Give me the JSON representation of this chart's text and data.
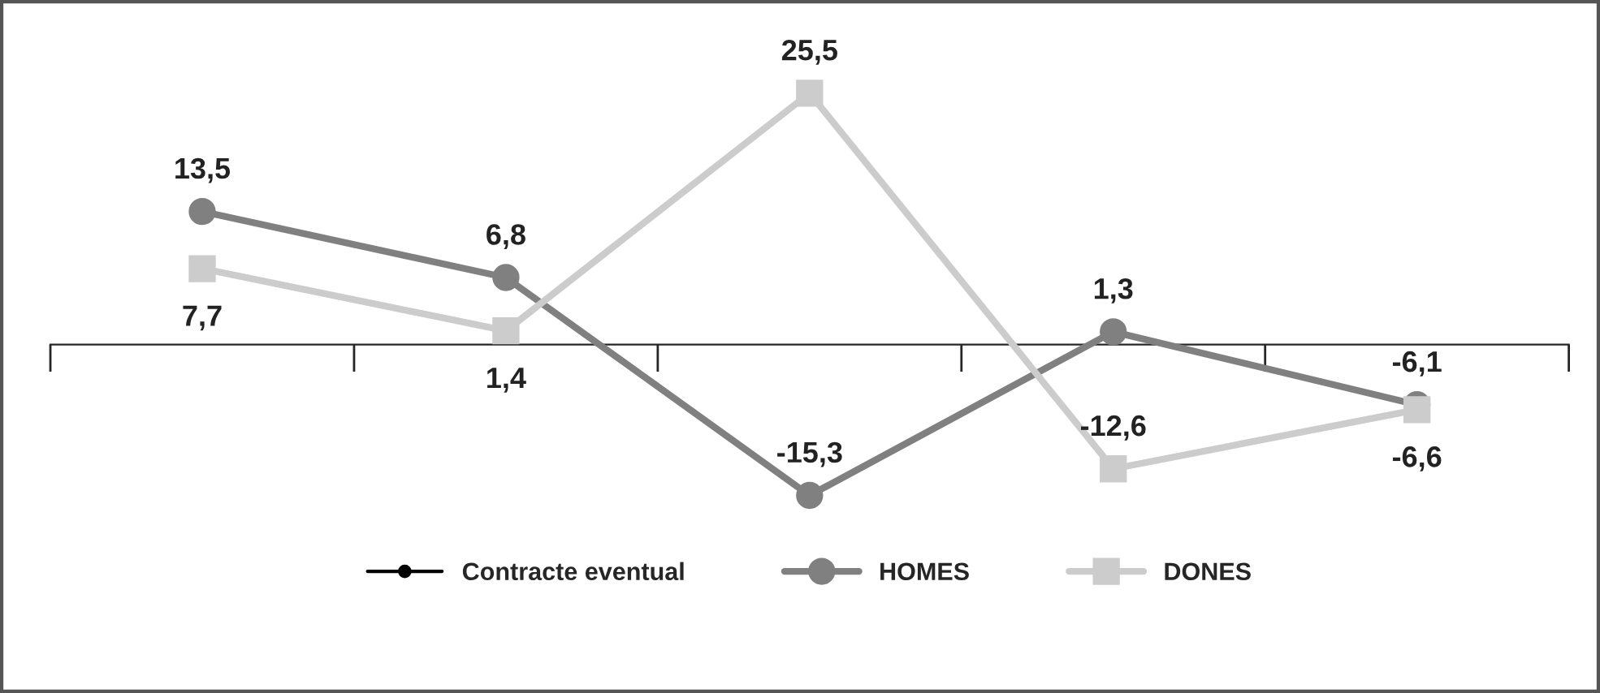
{
  "chart_data": {
    "type": "line",
    "categories": [
      null,
      null,
      null,
      null,
      null
    ],
    "series": [
      {
        "name": "Contracte eventual",
        "color": "#000000",
        "marker": "circle",
        "values": [
          null,
          null,
          null,
          null,
          null
        ]
      },
      {
        "name": "HOMES",
        "color": "#808080",
        "marker": "circle",
        "values": [
          13.5,
          6.8,
          -15.3,
          1.3,
          -6.1
        ],
        "value_labels": [
          "13,5",
          "6,8",
          "-15,3",
          "1,3",
          "-6,1"
        ]
      },
      {
        "name": "DONES",
        "color": "#cccccc",
        "marker": "square",
        "values": [
          7.7,
          1.4,
          25.5,
          -12.6,
          -6.6
        ],
        "value_labels": [
          "7,7",
          "1,4",
          "25,5",
          "-12,6",
          "-6,6"
        ]
      }
    ],
    "legend": "bottom",
    "line_style": "solid",
    "tick_labels": false
  }
}
